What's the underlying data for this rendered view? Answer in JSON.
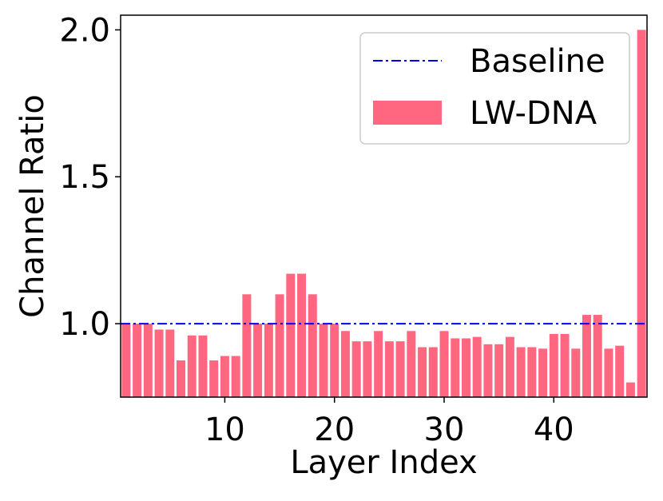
{
  "chart_data": {
    "type": "bar",
    "xlabel": "Layer Index",
    "ylabel": "Channel Ratio",
    "xlim": [
      0.5,
      48.5
    ],
    "ylim": [
      0.75,
      2.05
    ],
    "x_ticks": [
      10,
      20,
      30,
      40
    ],
    "x_tick_labels": [
      "10",
      "20",
      "30",
      "40"
    ],
    "y_ticks": [
      1.0,
      1.5,
      2.0
    ],
    "y_tick_labels": [
      "1.0",
      "1.5",
      "2.0"
    ],
    "legend_position": "upper-right",
    "x": [
      1,
      2,
      3,
      4,
      5,
      6,
      7,
      8,
      9,
      10,
      11,
      12,
      13,
      14,
      15,
      16,
      17,
      18,
      19,
      20,
      21,
      22,
      23,
      24,
      25,
      26,
      27,
      28,
      29,
      30,
      31,
      32,
      33,
      34,
      35,
      36,
      37,
      38,
      39,
      40,
      41,
      42,
      43,
      44,
      45,
      46,
      47,
      48
    ],
    "series": [
      {
        "name": "LW-DNA",
        "kind": "bar",
        "color": "#ff6680",
        "values": [
          1.0,
          1.0,
          1.0,
          0.98,
          0.98,
          0.875,
          0.96,
          0.96,
          0.875,
          0.89,
          0.89,
          1.1,
          1.0,
          1.0,
          1.1,
          1.17,
          1.17,
          1.1,
          1.0,
          1.0,
          0.975,
          0.94,
          0.94,
          0.975,
          0.94,
          0.94,
          0.975,
          0.92,
          0.92,
          0.975,
          0.95,
          0.95,
          0.955,
          0.93,
          0.93,
          0.955,
          0.92,
          0.92,
          0.915,
          0.965,
          0.965,
          0.915,
          1.03,
          1.03,
          0.915,
          0.925,
          0.8,
          2.0
        ]
      },
      {
        "name": "Baseline",
        "kind": "line",
        "color": "#0000ff",
        "style": "dash-dot",
        "value": 1.0
      }
    ]
  }
}
